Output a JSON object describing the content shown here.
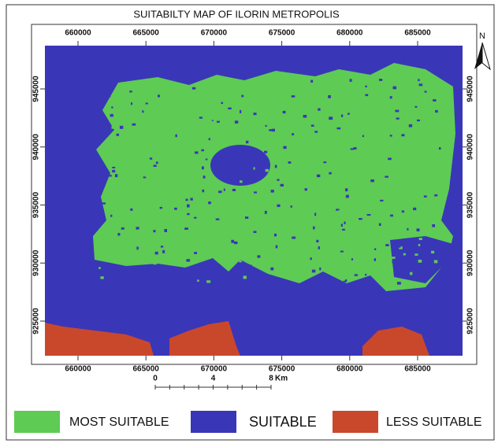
{
  "map": {
    "title": "SUITABILTY MAP OF ILORIN METROPOLIS",
    "xticks": [
      660000,
      665000,
      670000,
      675000,
      680000,
      685000
    ],
    "yticks": [
      945000,
      940000,
      935000,
      930000,
      925000
    ],
    "north": "N",
    "scale_bar": {
      "labels": [
        0,
        4,
        8
      ],
      "unit": "Km"
    },
    "legend": [
      {
        "name": "MOST SUITABLE",
        "color": "#5ecb55"
      },
      {
        "name": "SUITABLE",
        "color": "#3a36b8"
      },
      {
        "name": "LESS SUITABLE",
        "color": "#c9482c"
      }
    ]
  }
}
